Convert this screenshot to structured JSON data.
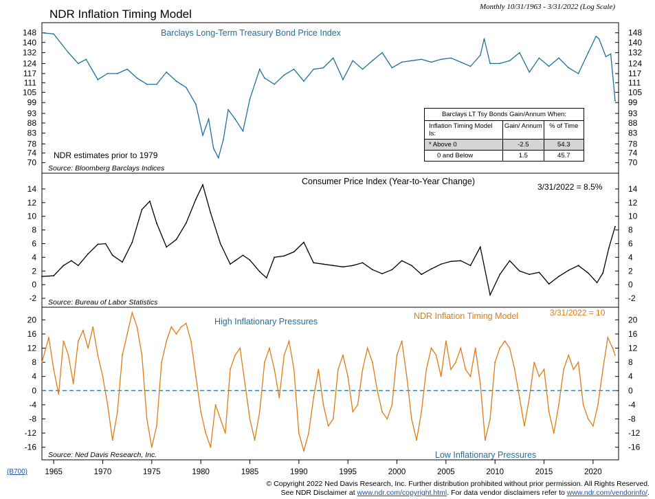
{
  "title": "NDR Inflation Timing Model",
  "subtitle": "Monthly 10/31/1963 - 3/31/2022 (Log Scale)",
  "chart_code": "(B700)",
  "footer": {
    "line1": "© Copyright 2022 Ned Davis Research, Inc. Further distribution prohibited without prior permission. All Rights Reserved.",
    "line2_prefix": "See NDR Disclaimer at ",
    "link1": "www.ndr.com/copyright.html",
    "line2_mid": ". For data vendor disclaimers refer to ",
    "link2": "www.ndr.com/vendorinfo/",
    "line2_suffix": "."
  },
  "gain_table": {
    "title": "Barclays LT Tsy Bonds Gain/Annum When:",
    "headers": [
      "Inflation Timing Model Is:",
      "Gain/ Annum",
      "% of Time"
    ],
    "rows": [
      {
        "label": "* Above 0",
        "gain": "-2.5",
        "pct": "54.3"
      },
      {
        "label": "0 and Below",
        "gain": "1.5",
        "pct": "45.7"
      }
    ]
  },
  "chart_data": [
    {
      "type": "line",
      "title": "Barclays Long-Term Treasury Bond Price Index",
      "scale": "log",
      "ylim": [
        68,
        152
      ],
      "yticks": [
        70,
        74,
        78,
        83,
        88,
        93,
        99,
        105,
        111,
        117,
        124,
        132,
        140,
        148
      ],
      "annotations": [
        "NDR estimates prior to 1979"
      ],
      "source": "Source: Bloomberg Barclays Indices",
      "color": "#1f6f9f",
      "x": [
        1963.8,
        1965,
        1966.5,
        1967.5,
        1968.3,
        1969.5,
        1970.5,
        1971.5,
        1972.5,
        1973.5,
        1974.5,
        1975.5,
        1976.5,
        1977.5,
        1978.5,
        1979.5,
        1980.2,
        1980.8,
        1981.3,
        1981.8,
        1982.3,
        1982.8,
        1983.5,
        1984.3,
        1985,
        1986,
        1986.5,
        1987.5,
        1988.5,
        1989.5,
        1990.5,
        1991.5,
        1992.5,
        1993.5,
        1994.5,
        1995.5,
        1996.5,
        1997.5,
        1998.5,
        1999.5,
        2000.5,
        2001.5,
        2002.5,
        2003.5,
        2004.5,
        2005.5,
        2006.5,
        2007.5,
        2008.5,
        2008.9,
        2009.5,
        2010.5,
        2011.5,
        2012.5,
        2013.5,
        2014.5,
        2015.5,
        2016.5,
        2017.5,
        2018.5,
        2019.5,
        2020.3,
        2020.6,
        2021.3,
        2021.8,
        2022.25
      ],
      "y": [
        148,
        147,
        132,
        124,
        127,
        113,
        117,
        117,
        120,
        114,
        110,
        110,
        118,
        112,
        108,
        98,
        82,
        90,
        76,
        72,
        80,
        95,
        90,
        84,
        101,
        120,
        114,
        110,
        116,
        120,
        112,
        120,
        121,
        128,
        113,
        126,
        120,
        126,
        132,
        121,
        125,
        126,
        127,
        125,
        127,
        128,
        125,
        122,
        130,
        143,
        124,
        124,
        126,
        132,
        118,
        128,
        122,
        128,
        121,
        117,
        132,
        145,
        143,
        129,
        131,
        100
      ]
    },
    {
      "type": "line",
      "title": "Consumer Price Index (Year-to-Year Change)",
      "latest": "3/31/2022 = 8.5%",
      "ylim": [
        -2.5,
        15.5
      ],
      "yticks": [
        -2,
        0,
        2,
        4,
        6,
        8,
        10,
        12,
        14
      ],
      "source": "Source: Bureau of Labor Statistics",
      "color": "#000000",
      "x": [
        1963.8,
        1965,
        1966,
        1966.8,
        1967.5,
        1968.5,
        1969.5,
        1970.3,
        1971,
        1972,
        1973,
        1974,
        1974.8,
        1975.5,
        1976.5,
        1977.5,
        1978.5,
        1979.5,
        1980.2,
        1981,
        1982,
        1983,
        1983.5,
        1984.3,
        1985,
        1986,
        1986.7,
        1987.5,
        1988.5,
        1989.5,
        1990.5,
        1991.5,
        1992.5,
        1993.5,
        1994.5,
        1995.5,
        1996.5,
        1997.5,
        1998.5,
        1999.5,
        2000.5,
        2001.5,
        2002.5,
        2003.5,
        2004.5,
        2005.5,
        2006.5,
        2007.5,
        2008.5,
        2009.5,
        2010.5,
        2011.5,
        2012.5,
        2013.5,
        2014.5,
        2015.5,
        2016.5,
        2017.5,
        2018.5,
        2019.5,
        2020.4,
        2021,
        2021.6,
        2022.25
      ],
      "y": [
        1.2,
        1.3,
        2.8,
        3.5,
        2.8,
        4.5,
        5.9,
        6.0,
        4.3,
        3.3,
        6.2,
        11,
        12.2,
        9.0,
        5.5,
        6.6,
        9.0,
        12.5,
        14.6,
        10.5,
        6.0,
        3.0,
        3.5,
        4.3,
        3.6,
        1.9,
        1.0,
        4.0,
        4.2,
        4.8,
        6.2,
        3.2,
        3.0,
        2.8,
        2.6,
        2.8,
        3.2,
        2.2,
        1.6,
        2.2,
        3.5,
        2.8,
        1.5,
        2.3,
        3.0,
        3.4,
        3.5,
        2.8,
        5.5,
        -1.5,
        1.5,
        3.5,
        2.0,
        1.5,
        1.8,
        0.1,
        1.2,
        2.1,
        2.8,
        1.7,
        0.3,
        1.7,
        5.3,
        8.5
      ]
    },
    {
      "type": "line",
      "title": "NDR Inflation Timing Model",
      "latest": "3/31/2022 = 10",
      "ylim": [
        -18,
        22
      ],
      "yticks": [
        -16,
        -12,
        -8,
        -4,
        0,
        4,
        8,
        12,
        16,
        20
      ],
      "annotations": [
        "High Inflationary Pressures",
        "Low Inflationary Pressures"
      ],
      "source": "Source: Ned Davis Research, Inc.",
      "color": "#e07b12",
      "x": [
        1963.8,
        1964.5,
        1965,
        1965.5,
        1966,
        1966.5,
        1967,
        1967.5,
        1968,
        1968.5,
        1969,
        1969.5,
        1970,
        1970.5,
        1971,
        1971.5,
        1972,
        1972.5,
        1973,
        1973.5,
        1974,
        1974.5,
        1975,
        1975.5,
        1976,
        1976.5,
        1977,
        1977.5,
        1978,
        1978.5,
        1979,
        1979.5,
        1980,
        1980.5,
        1981,
        1981.5,
        1982,
        1982.5,
        1983,
        1983.5,
        1984,
        1984.5,
        1985,
        1985.5,
        1986,
        1986.5,
        1987,
        1987.5,
        1988,
        1988.5,
        1989,
        1989.5,
        1990,
        1990.5,
        1991,
        1991.5,
        1992,
        1992.5,
        1993,
        1993.5,
        1994,
        1994.5,
        1995,
        1995.5,
        1996,
        1996.5,
        1997,
        1997.5,
        1998,
        1998.5,
        1999,
        1999.5,
        2000,
        2000.5,
        2001,
        2001.5,
        2002,
        2002.5,
        2003,
        2003.5,
        2004,
        2004.5,
        2005,
        2005.5,
        2006,
        2006.5,
        2007,
        2007.5,
        2008,
        2008.5,
        2009,
        2009.5,
        2010,
        2010.5,
        2011,
        2011.5,
        2012,
        2012.5,
        2013,
        2013.5,
        2014,
        2014.5,
        2015,
        2015.5,
        2016,
        2016.5,
        2017,
        2017.5,
        2018,
        2018.5,
        2019,
        2019.5,
        2020,
        2020.5,
        2021,
        2021.5,
        2022,
        2022.25
      ],
      "y": [
        8,
        15,
        6,
        -1,
        14,
        10,
        2,
        14,
        17,
        12,
        18,
        10,
        4,
        -4,
        -14,
        -6,
        10,
        16,
        22,
        18,
        10,
        -8,
        -16,
        -10,
        8,
        14,
        18,
        16,
        18,
        19,
        14,
        4,
        -6,
        -12,
        -16,
        -4,
        -8,
        -12,
        6,
        10,
        12,
        2,
        -8,
        -14,
        -6,
        8,
        12,
        6,
        -2,
        10,
        14,
        6,
        -12,
        -17,
        -12,
        -2,
        6,
        -4,
        -10,
        -8,
        6,
        10,
        4,
        -6,
        -4,
        6,
        12,
        8,
        0,
        -6,
        -8,
        -4,
        10,
        14,
        4,
        -8,
        -14,
        -6,
        6,
        12,
        10,
        4,
        14,
        6,
        8,
        12,
        6,
        4,
        12,
        2,
        -14,
        -8,
        8,
        12,
        14,
        12,
        6,
        -2,
        -10,
        -2,
        8,
        4,
        6,
        -6,
        -12,
        -4,
        6,
        10,
        6,
        8,
        -4,
        -8,
        -10,
        -4,
        6,
        15,
        12,
        10
      ]
    }
  ],
  "x_axis": {
    "xlim": [
      1963.8,
      2022.6
    ],
    "ticks": [
      1965,
      1970,
      1975,
      1980,
      1985,
      1990,
      1995,
      2000,
      2005,
      2010,
      2015,
      2020
    ]
  }
}
